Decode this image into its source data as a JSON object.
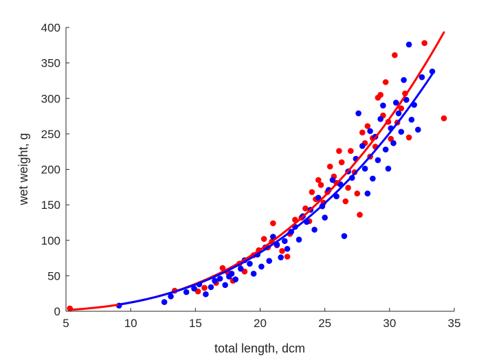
{
  "chart_data": {
    "type": "scatter",
    "title": "",
    "xlabel": "total length, dcm",
    "ylabel": "wet weight, g",
    "xlim": [
      5,
      35
    ],
    "ylim": [
      0,
      400
    ],
    "xticks": [
      "5",
      "10",
      "15",
      "20",
      "25",
      "30",
      "35"
    ],
    "yticks": [
      "0",
      "50",
      "100",
      "150",
      "200",
      "250",
      "300",
      "350",
      "400"
    ],
    "grid": false,
    "legend": "none",
    "series": [
      {
        "color": "#ff0000",
        "points": [
          [
            5.3,
            4
          ],
          [
            13.4,
            29
          ],
          [
            15.2,
            28
          ],
          [
            15.7,
            33
          ],
          [
            16.6,
            40
          ],
          [
            17.1,
            61
          ],
          [
            17.5,
            55
          ],
          [
            17.9,
            43
          ],
          [
            18.4,
            67
          ],
          [
            18.8,
            56
          ],
          [
            19.5,
            79
          ],
          [
            19.9,
            86
          ],
          [
            20.3,
            102
          ],
          [
            20.6,
            90
          ],
          [
            20.9,
            98
          ],
          [
            21.0,
            124
          ],
          [
            21.3,
            93
          ],
          [
            21.7,
            85
          ],
          [
            22.1,
            77
          ],
          [
            22.3,
            109
          ],
          [
            22.7,
            129
          ],
          [
            23.2,
            132
          ],
          [
            23.5,
            145
          ],
          [
            23.8,
            127
          ],
          [
            24.0,
            168
          ],
          [
            24.3,
            158
          ],
          [
            24.5,
            185
          ],
          [
            24.7,
            178
          ],
          [
            24.9,
            153
          ],
          [
            25.2,
            168
          ],
          [
            25.4,
            204
          ],
          [
            25.7,
            190
          ],
          [
            25.9,
            181
          ],
          [
            26.1,
            226
          ],
          [
            26.3,
            210
          ],
          [
            26.6,
            155
          ],
          [
            26.8,
            174
          ],
          [
            27.0,
            226
          ],
          [
            27.3,
            196
          ],
          [
            27.5,
            166
          ],
          [
            27.7,
            136
          ],
          [
            27.9,
            252
          ],
          [
            28.1,
            237
          ],
          [
            28.3,
            261
          ],
          [
            28.5,
            218
          ],
          [
            28.7,
            244
          ],
          [
            28.9,
            232
          ],
          [
            29.1,
            301
          ],
          [
            29.3,
            305
          ],
          [
            29.5,
            276
          ],
          [
            29.7,
            323
          ],
          [
            29.9,
            267
          ],
          [
            30.1,
            243
          ],
          [
            30.4,
            361
          ],
          [
            30.6,
            266
          ],
          [
            30.9,
            286
          ],
          [
            31.2,
            307
          ],
          [
            31.5,
            245
          ],
          [
            32.7,
            378
          ],
          [
            34.2,
            272
          ]
        ],
        "fit": [
          [
            5.3,
            2
          ],
          [
            10,
            13
          ],
          [
            15,
            38
          ],
          [
            20,
            84
          ],
          [
            25,
            165
          ],
          [
            30,
            275
          ],
          [
            34.2,
            388
          ]
        ]
      },
      {
        "color": "#0000ff",
        "points": [
          [
            9.1,
            8
          ],
          [
            12.6,
            13
          ],
          [
            13.1,
            21
          ],
          [
            14.3,
            27
          ],
          [
            14.9,
            32
          ],
          [
            15.3,
            38
          ],
          [
            15.8,
            24
          ],
          [
            16.2,
            34
          ],
          [
            16.5,
            43
          ],
          [
            16.9,
            46
          ],
          [
            17.3,
            37
          ],
          [
            17.6,
            49
          ],
          [
            17.8,
            53
          ],
          [
            18.1,
            45
          ],
          [
            18.5,
            60
          ],
          [
            18.8,
            72
          ],
          [
            19.2,
            67
          ],
          [
            19.5,
            53
          ],
          [
            19.8,
            80
          ],
          [
            20.1,
            63
          ],
          [
            20.4,
            90
          ],
          [
            20.7,
            71
          ],
          [
            21.0,
            105
          ],
          [
            21.3,
            94
          ],
          [
            21.6,
            76
          ],
          [
            21.9,
            99
          ],
          [
            22.1,
            88
          ],
          [
            22.4,
            112
          ],
          [
            22.7,
            119
          ],
          [
            23.0,
            101
          ],
          [
            23.3,
            134
          ],
          [
            23.6,
            126
          ],
          [
            23.9,
            143
          ],
          [
            24.2,
            115
          ],
          [
            24.5,
            160
          ],
          [
            24.8,
            148
          ],
          [
            25.0,
            132
          ],
          [
            25.3,
            171
          ],
          [
            25.6,
            185
          ],
          [
            25.9,
            162
          ],
          [
            26.2,
            179
          ],
          [
            26.5,
            106
          ],
          [
            26.8,
            197
          ],
          [
            27.1,
            188
          ],
          [
            27.4,
            215
          ],
          [
            27.6,
            279
          ],
          [
            27.9,
            233
          ],
          [
            28.1,
            201
          ],
          [
            28.3,
            166
          ],
          [
            28.5,
            254
          ],
          [
            28.7,
            187
          ],
          [
            28.9,
            246
          ],
          [
            29.1,
            213
          ],
          [
            29.3,
            271
          ],
          [
            29.5,
            290
          ],
          [
            29.7,
            228
          ],
          [
            29.9,
            201
          ],
          [
            30.1,
            258
          ],
          [
            30.3,
            237
          ],
          [
            30.5,
            294
          ],
          [
            30.7,
            279
          ],
          [
            30.9,
            253
          ],
          [
            31.1,
            326
          ],
          [
            31.3,
            298
          ],
          [
            31.5,
            376
          ],
          [
            31.7,
            270
          ],
          [
            31.9,
            291
          ],
          [
            32.2,
            256
          ],
          [
            32.5,
            330
          ],
          [
            33.3,
            338
          ]
        ],
        "fit": [
          [
            9.1,
            10
          ],
          [
            15,
            36
          ],
          [
            20,
            79
          ],
          [
            25,
            153
          ],
          [
            30,
            255
          ],
          [
            33.3,
            344
          ]
        ]
      }
    ]
  }
}
